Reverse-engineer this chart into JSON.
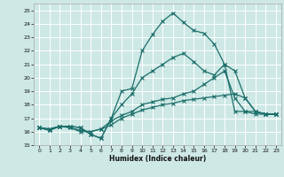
{
  "xlabel": "Humidex (Indice chaleur)",
  "xlim": [
    -0.5,
    23.5
  ],
  "ylim": [
    15,
    25.5
  ],
  "yticks": [
    15,
    16,
    17,
    18,
    19,
    20,
    21,
    22,
    23,
    24,
    25
  ],
  "xticks": [
    0,
    1,
    2,
    3,
    4,
    5,
    6,
    7,
    8,
    9,
    10,
    11,
    12,
    13,
    14,
    15,
    16,
    17,
    18,
    19,
    20,
    21,
    22,
    23
  ],
  "bg_color": "#cde8e5",
  "grid_color": "#ffffff",
  "line_color": "#1a6e6a",
  "lines": [
    [
      16.3,
      16.1,
      16.4,
      16.4,
      16.3,
      15.8,
      15.5,
      17.0,
      19.0,
      19.2,
      22.0,
      23.2,
      24.2,
      24.8,
      24.1,
      23.5,
      23.3,
      22.5,
      21.0,
      17.5,
      17.5,
      17.3,
      17.3,
      17.3
    ],
    [
      16.3,
      16.1,
      16.4,
      16.4,
      16.3,
      15.8,
      15.5,
      17.0,
      18.0,
      18.8,
      20.0,
      20.5,
      21.0,
      21.5,
      21.8,
      21.2,
      20.5,
      20.2,
      21.0,
      20.5,
      18.5,
      17.5,
      17.3,
      17.3
    ],
    [
      16.3,
      16.2,
      16.4,
      16.3,
      16.0,
      16.0,
      16.2,
      16.8,
      17.2,
      17.5,
      18.0,
      18.2,
      18.4,
      18.5,
      18.8,
      19.0,
      19.5,
      20.0,
      20.5,
      18.5,
      17.5,
      17.5,
      17.3,
      17.3
    ],
    [
      16.3,
      16.2,
      16.4,
      16.3,
      16.1,
      16.0,
      16.2,
      16.5,
      17.0,
      17.3,
      17.6,
      17.8,
      18.0,
      18.1,
      18.3,
      18.4,
      18.5,
      18.6,
      18.7,
      18.8,
      18.5,
      17.5,
      17.3,
      17.3
    ]
  ]
}
